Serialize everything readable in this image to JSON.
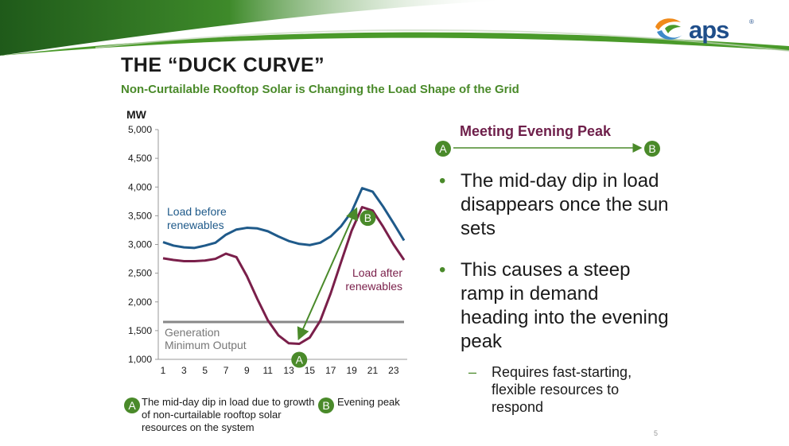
{
  "header": {
    "logo_text": "aps",
    "logo_mark": "®",
    "title": "THE “DUCK CURVE”",
    "subtitle": "Non-Curtailable Rooftop Solar is Changing the Load Shape of the Grid"
  },
  "chart_data": {
    "type": "line",
    "ylabel": "MW",
    "ylim": [
      1000,
      5000
    ],
    "yticks": [
      1000,
      1500,
      2000,
      2500,
      3000,
      3500,
      4000,
      4500,
      5000
    ],
    "ytick_labels": [
      "1,000",
      "1,500",
      "2,000",
      "2,500",
      "3,000",
      "3,500",
      "4,000",
      "4,500",
      "5,000"
    ],
    "xlim": [
      1,
      24
    ],
    "xticks": [
      1,
      3,
      5,
      7,
      9,
      11,
      13,
      15,
      17,
      19,
      21,
      23
    ],
    "x": [
      1,
      2,
      3,
      4,
      5,
      6,
      7,
      8,
      9,
      10,
      11,
      12,
      13,
      14,
      15,
      16,
      17,
      18,
      19,
      20,
      21,
      22,
      23,
      24
    ],
    "series": [
      {
        "name": "Load before renewables",
        "label_lines": [
          "Load before",
          "renewables"
        ],
        "color": "#1f5a8a",
        "values": [
          3040,
          2980,
          2950,
          2940,
          2980,
          3030,
          3170,
          3260,
          3290,
          3280,
          3230,
          3140,
          3060,
          3010,
          2990,
          3030,
          3140,
          3320,
          3570,
          3980,
          3920,
          3660,
          3370,
          3070
        ]
      },
      {
        "name": "Load after renewables",
        "label_lines": [
          "Load after",
          "renewables"
        ],
        "color": "#7a1f4a",
        "values": [
          2760,
          2730,
          2710,
          2710,
          2720,
          2750,
          2840,
          2780,
          2450,
          2050,
          1680,
          1420,
          1280,
          1270,
          1380,
          1670,
          2150,
          2700,
          3240,
          3650,
          3590,
          3310,
          3000,
          2730
        ]
      }
    ],
    "reference_line": {
      "value": 1650,
      "label_lines": [
        "Generation",
        "Minimum Output"
      ],
      "color": "#888888"
    },
    "annotation": {
      "from_label": "A",
      "from": [
        14,
        1270
      ],
      "to_label": "B",
      "to": [
        19.4,
        3600
      ],
      "color": "#4a8a2a"
    },
    "grid": false
  },
  "callout": {
    "heading": "Meeting Evening Peak",
    "badge_a": "A",
    "badge_b": "B"
  },
  "bullets": [
    "The mid-day dip in load disappears once the sun sets",
    "This causes a steep ramp in demand heading into the evening peak"
  ],
  "sub_bullet": "Requires fast-starting, flexible resources to respond",
  "bullet_marker": "•",
  "sub_bullet_marker": "–",
  "legend": {
    "a_badge": "A",
    "a_text": "The mid-day dip in load due to growth of non-curtailable rooftop solar resources on the system",
    "b_badge": "B",
    "b_text": "Evening peak"
  },
  "footer": {
    "page_number": "5"
  },
  "colors": {
    "brand_green": "#4a8a2a",
    "brand_blue": "#1f4e8a",
    "before_line": "#1f5a8a",
    "after_line": "#7a1f4a",
    "heading_plum": "#6e1f4a"
  }
}
